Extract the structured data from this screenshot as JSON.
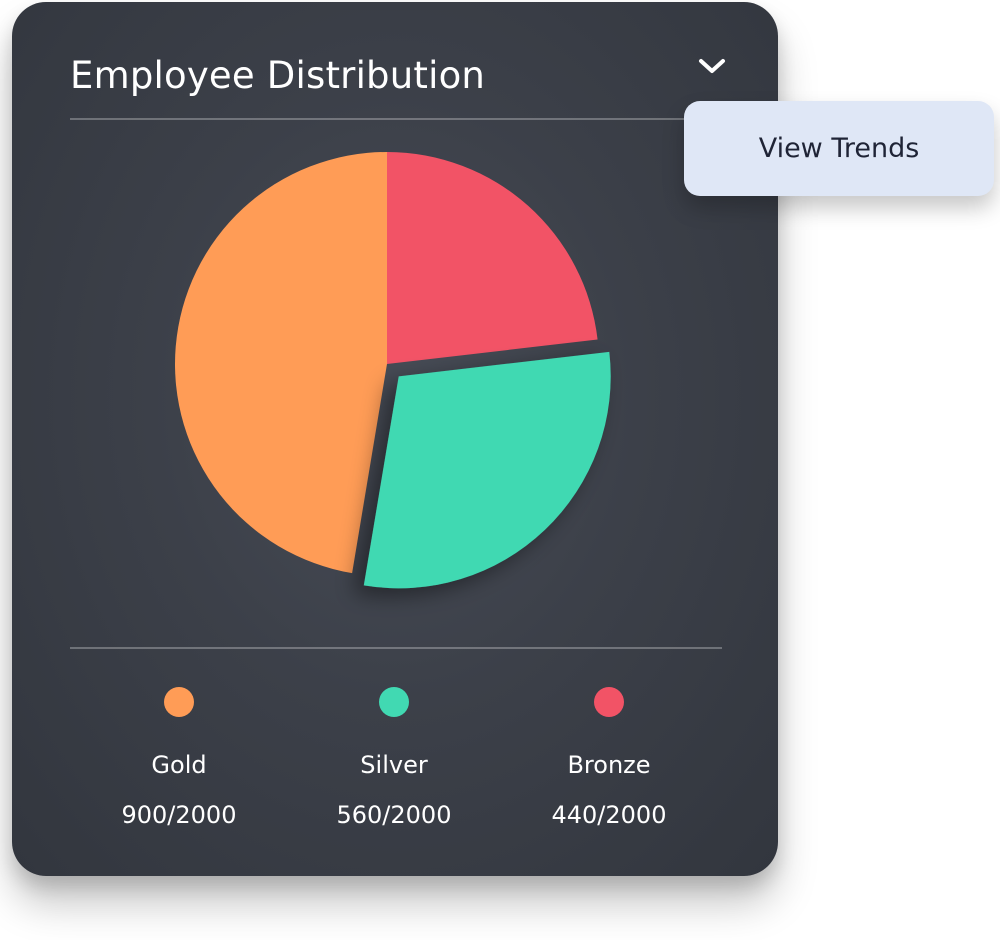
{
  "card": {
    "title": "Employee Distribution",
    "menu_icon": "chevron-down-icon"
  },
  "popup": {
    "items": [
      {
        "label": "View Trends"
      }
    ]
  },
  "legend": [
    {
      "label": "Gold",
      "value": "900/2000",
      "color": "#FF9C56"
    },
    {
      "label": "Silver",
      "value": "560/2000",
      "color": "#41D9B2"
    },
    {
      "label": "Bronze",
      "value": "440/2000",
      "color": "#F25366"
    }
  ],
  "chart_data": {
    "type": "pie",
    "title": "Employee Distribution",
    "total": 2000,
    "categories": [
      "Gold",
      "Silver",
      "Bronze"
    ],
    "values": [
      900,
      560,
      440
    ],
    "colors": [
      "#FF9C56",
      "#41D9B2",
      "#F25366"
    ],
    "exploded": [
      "Silver"
    ],
    "legend_position": "bottom"
  }
}
